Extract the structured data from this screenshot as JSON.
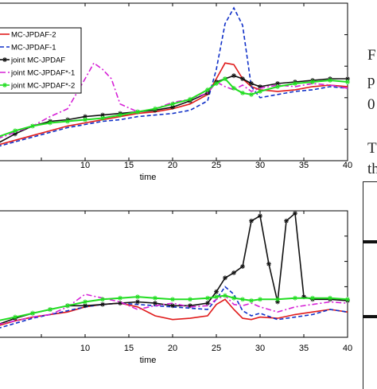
{
  "chart_data": [
    {
      "type": "line",
      "xlabel": "time",
      "xlim": [
        0,
        40
      ],
      "ylim": [
        0,
        1
      ],
      "x_ticks": [
        "10",
        "15",
        "20",
        "25",
        "30",
        "35",
        "40"
      ],
      "legend_position": "top-left",
      "series": [
        {
          "name": "MC-JPDAF-2",
          "color": "#e01b1b",
          "dash": "solid",
          "marker": "none",
          "x": [
            0,
            2,
            4,
            6,
            8,
            10,
            12,
            14,
            16,
            18,
            20,
            22,
            24,
            25,
            26,
            27,
            28,
            29,
            30,
            32,
            34,
            36,
            38,
            40
          ],
          "y": [
            0.1,
            0.13,
            0.16,
            0.19,
            0.22,
            0.24,
            0.26,
            0.28,
            0.3,
            0.31,
            0.33,
            0.36,
            0.42,
            0.52,
            0.62,
            0.61,
            0.52,
            0.47,
            0.45,
            0.44,
            0.45,
            0.47,
            0.48,
            0.47
          ]
        },
        {
          "name": "MC-JPDAF-1",
          "color": "#1030c8",
          "dash": "dashed",
          "marker": "none",
          "x": [
            0,
            2,
            4,
            6,
            8,
            10,
            12,
            14,
            16,
            18,
            20,
            22,
            24,
            25,
            26,
            27,
            28,
            29,
            30,
            32,
            34,
            36,
            38,
            40
          ],
          "y": [
            0.09,
            0.12,
            0.15,
            0.18,
            0.21,
            0.23,
            0.25,
            0.26,
            0.28,
            0.29,
            0.3,
            0.32,
            0.38,
            0.58,
            0.87,
            0.97,
            0.86,
            0.47,
            0.4,
            0.42,
            0.44,
            0.45,
            0.47,
            0.46
          ]
        },
        {
          "name": "joint MC-JPDAF",
          "color": "#111111",
          "dash": "solid",
          "marker": "star",
          "x": [
            0,
            2,
            4,
            6,
            8,
            10,
            12,
            14,
            16,
            18,
            20,
            22,
            24,
            25,
            26,
            27,
            28,
            29,
            30,
            32,
            34,
            36,
            38,
            40
          ],
          "y": [
            0.11,
            0.17,
            0.22,
            0.25,
            0.26,
            0.28,
            0.29,
            0.3,
            0.31,
            0.32,
            0.34,
            0.38,
            0.43,
            0.5,
            0.52,
            0.54,
            0.52,
            0.49,
            0.47,
            0.49,
            0.5,
            0.51,
            0.52,
            0.52
          ]
        },
        {
          "name": "joint MC-JPDAF*-1",
          "color": "#d620d6",
          "dash": "dashdot",
          "marker": "none",
          "x": [
            0,
            2,
            4,
            6,
            8,
            10,
            11,
            12,
            13,
            14,
            16,
            18,
            20,
            22,
            24,
            25,
            26,
            27,
            28,
            29,
            30,
            32,
            34,
            36,
            38,
            40
          ],
          "y": [
            0.14,
            0.18,
            0.22,
            0.28,
            0.33,
            0.52,
            0.62,
            0.58,
            0.52,
            0.36,
            0.31,
            0.33,
            0.37,
            0.39,
            0.43,
            0.5,
            0.47,
            0.45,
            0.48,
            0.44,
            0.46,
            0.48,
            0.47,
            0.49,
            0.48,
            0.46
          ]
        },
        {
          "name": "joint MC-JPDAF*-2",
          "color": "#22dd22",
          "dash": "solid",
          "marker": "star",
          "x": [
            0,
            2,
            4,
            6,
            8,
            10,
            12,
            14,
            16,
            18,
            20,
            22,
            24,
            25,
            26,
            27,
            28,
            29,
            30,
            32,
            34,
            36,
            38,
            40
          ],
          "y": [
            0.15,
            0.19,
            0.22,
            0.24,
            0.25,
            0.26,
            0.27,
            0.29,
            0.31,
            0.33,
            0.36,
            0.39,
            0.45,
            0.49,
            0.52,
            0.46,
            0.43,
            0.42,
            0.44,
            0.47,
            0.49,
            0.5,
            0.51,
            0.5
          ]
        }
      ]
    },
    {
      "type": "line",
      "xlabel": "time",
      "xlim": [
        0,
        40
      ],
      "ylim": [
        0,
        1
      ],
      "x_ticks": [
        "10",
        "15",
        "20",
        "25",
        "30",
        "35",
        "40"
      ],
      "series": [
        {
          "name": "MC-JPDAF-2",
          "color": "#e01b1b",
          "dash": "solid",
          "marker": "none",
          "x": [
            0,
            2,
            4,
            6,
            8,
            10,
            12,
            14,
            16,
            18,
            20,
            22,
            24,
            25,
            26,
            27,
            28,
            29,
            30,
            32,
            34,
            36,
            38,
            40
          ],
          "y": [
            0.09,
            0.13,
            0.16,
            0.18,
            0.2,
            0.24,
            0.26,
            0.27,
            0.24,
            0.17,
            0.14,
            0.15,
            0.17,
            0.26,
            0.3,
            0.22,
            0.15,
            0.14,
            0.16,
            0.15,
            0.18,
            0.2,
            0.22,
            0.2
          ]
        },
        {
          "name": "MC-JPDAF-1",
          "color": "#1030c8",
          "dash": "dashed",
          "marker": "none",
          "x": [
            0,
            2,
            4,
            6,
            8,
            10,
            12,
            14,
            16,
            18,
            20,
            22,
            24,
            25,
            26,
            27,
            28,
            29,
            30,
            32,
            34,
            36,
            38,
            40
          ],
          "y": [
            0.07,
            0.11,
            0.15,
            0.18,
            0.21,
            0.24,
            0.26,
            0.27,
            0.26,
            0.25,
            0.24,
            0.23,
            0.22,
            0.3,
            0.4,
            0.34,
            0.21,
            0.17,
            0.19,
            0.14,
            0.16,
            0.18,
            0.22,
            0.2
          ]
        },
        {
          "name": "joint MC-JPDAF",
          "color": "#111111",
          "dash": "solid",
          "marker": "star",
          "x": [
            0,
            2,
            4,
            6,
            8,
            10,
            12,
            14,
            16,
            18,
            20,
            22,
            24,
            25,
            26,
            27,
            28,
            29,
            30,
            31,
            32,
            33,
            34,
            35,
            36,
            38,
            40
          ],
          "y": [
            0.1,
            0.15,
            0.19,
            0.22,
            0.25,
            0.25,
            0.26,
            0.27,
            0.28,
            0.27,
            0.25,
            0.25,
            0.27,
            0.36,
            0.47,
            0.51,
            0.56,
            0.92,
            0.96,
            0.58,
            0.28,
            0.92,
            0.98,
            0.32,
            0.3,
            0.3,
            0.29
          ]
        },
        {
          "name": "joint MC-JPDAF*-1",
          "color": "#d620d6",
          "dash": "dashdot",
          "marker": "none",
          "x": [
            0,
            2,
            4,
            6,
            8,
            10,
            12,
            14,
            16,
            18,
            20,
            22,
            24,
            25,
            26,
            27,
            28,
            29,
            30,
            32,
            34,
            36,
            38,
            40
          ],
          "y": [
            0.1,
            0.13,
            0.16,
            0.18,
            0.24,
            0.34,
            0.31,
            0.28,
            0.22,
            0.25,
            0.27,
            0.24,
            0.25,
            0.3,
            0.33,
            0.26,
            0.25,
            0.27,
            0.24,
            0.2,
            0.24,
            0.26,
            0.28,
            0.27
          ]
        },
        {
          "name": "joint MC-JPDAF*-2",
          "color": "#22dd22",
          "dash": "solid",
          "marker": "star",
          "x": [
            0,
            2,
            4,
            6,
            8,
            10,
            12,
            14,
            16,
            18,
            20,
            22,
            24,
            25,
            26,
            27,
            28,
            29,
            30,
            32,
            34,
            36,
            38,
            40
          ],
          "y": [
            0.13,
            0.16,
            0.19,
            0.22,
            0.25,
            0.28,
            0.3,
            0.31,
            0.32,
            0.31,
            0.3,
            0.3,
            0.31,
            0.32,
            0.33,
            0.31,
            0.3,
            0.29,
            0.3,
            0.3,
            0.31,
            0.31,
            0.31,
            0.3
          ]
        }
      ]
    }
  ],
  "side_text": {
    "line1": "F",
    "line2": "p",
    "line3": "0",
    "line4": "T",
    "line5": "th"
  }
}
